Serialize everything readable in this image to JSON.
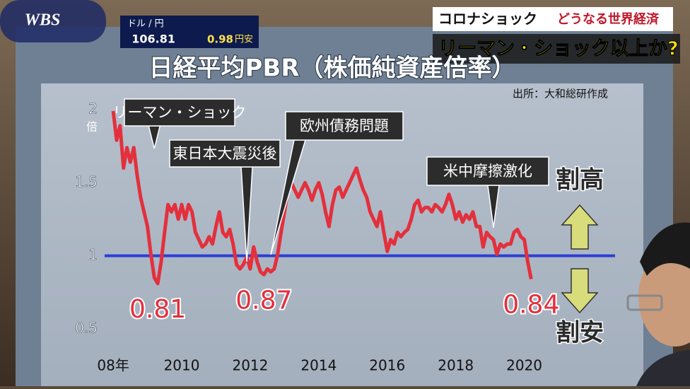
{
  "overlay": {
    "logo": "WBS",
    "fx_label": "ドル / 円",
    "fx_rate": 106.81,
    "fx_change": 0.98,
    "fx_change_unit": "円安",
    "headline_tag": "コロナショック",
    "headline_sub": "どうなる世界経済",
    "headline_main": "リーマン・ショック以上か?"
  },
  "chart_data": {
    "type": "line",
    "title": "日経平均PBR（株価純資産倍率）",
    "source": "出所：大和総研作成",
    "y_unit": "倍",
    "x": [
      2008,
      2008.1,
      2008.2,
      2008.3,
      2008.4,
      2008.5,
      2008.6,
      2008.7,
      2008.8,
      2008.9,
      2009,
      2009.1,
      2009.2,
      2009.3,
      2009.4,
      2009.5,
      2009.6,
      2009.7,
      2009.8,
      2009.9,
      2010,
      2010.1,
      2010.2,
      2010.3,
      2010.4,
      2010.5,
      2010.6,
      2010.7,
      2010.8,
      2010.9,
      2011,
      2011.1,
      2011.2,
      2011.3,
      2011.4,
      2011.5,
      2011.6,
      2011.7,
      2011.8,
      2011.9,
      2012,
      2012.1,
      2012.2,
      2012.3,
      2012.4,
      2012.5,
      2012.6,
      2012.7,
      2012.8,
      2012.9,
      2013,
      2013.1,
      2013.2,
      2013.3,
      2013.4,
      2013.5,
      2013.6,
      2013.7,
      2013.8,
      2013.9,
      2014,
      2014.1,
      2014.2,
      2014.3,
      2014.4,
      2014.5,
      2014.6,
      2014.7,
      2014.8,
      2014.9,
      2015,
      2015.1,
      2015.2,
      2015.3,
      2015.4,
      2015.5,
      2015.6,
      2015.7,
      2015.8,
      2015.9,
      2016,
      2016.1,
      2016.2,
      2016.3,
      2016.4,
      2016.5,
      2016.6,
      2016.7,
      2016.8,
      2016.9,
      2017,
      2017.1,
      2017.2,
      2017.3,
      2017.4,
      2017.5,
      2017.6,
      2017.7,
      2017.8,
      2017.9,
      2018,
      2018.1,
      2018.2,
      2018.3,
      2018.4,
      2018.5,
      2018.6,
      2018.7,
      2018.8,
      2018.9,
      2019,
      2019.1,
      2019.2,
      2019.3,
      2019.4,
      2019.5,
      2019.6,
      2019.7,
      2019.8,
      2019.9,
      2020,
      2020.1,
      2020.2
    ],
    "values": [
      1.99,
      1.79,
      1.89,
      1.6,
      1.74,
      1.64,
      1.74,
      1.55,
      1.4,
      1.3,
      1.2,
      1.01,
      0.85,
      0.81,
      0.96,
      1.16,
      1.35,
      1.3,
      1.35,
      1.25,
      1.35,
      1.25,
      1.35,
      1.3,
      1.16,
      1.11,
      1.06,
      1.08,
      1.13,
      1.08,
      1.2,
      1.3,
      1.16,
      1.13,
      1.18,
      1.08,
      0.94,
      0.91,
      0.94,
      0.99,
      0.91,
      1.06,
      0.96,
      0.89,
      0.87,
      0.91,
      0.89,
      0.91,
      1.01,
      1.16,
      1.3,
      1.45,
      1.5,
      1.45,
      1.4,
      1.45,
      1.5,
      1.45,
      1.38,
      1.45,
      1.5,
      1.42,
      1.3,
      1.2,
      1.35,
      1.45,
      1.47,
      1.4,
      1.45,
      1.5,
      1.55,
      1.6,
      1.52,
      1.45,
      1.4,
      1.3,
      1.25,
      1.2,
      1.3,
      1.16,
      1.03,
      1.11,
      1.08,
      1.16,
      1.13,
      1.16,
      1.18,
      1.25,
      1.35,
      1.38,
      1.3,
      1.33,
      1.33,
      1.3,
      1.35,
      1.33,
      1.3,
      1.35,
      1.42,
      1.35,
      1.25,
      1.3,
      1.23,
      1.28,
      1.25,
      1.3,
      1.2,
      1.2,
      1.06,
      1.16,
      1.13,
      1.11,
      1.01,
      1.08,
      1.06,
      1.08,
      1.08,
      1.16,
      1.18,
      1.13,
      1.11,
      0.96,
      0.84
    ],
    "color": "#e3303c",
    "xlim": [
      2007.75,
      2022.65
    ],
    "xticks": [
      {
        "value": 2008,
        "label": "08年"
      },
      2010,
      2012,
      2014,
      2016,
      2018,
      2020
    ],
    "ylim": [
      0.33,
      2.1
    ],
    "yticks": [
      0.5,
      1,
      1.5,
      2
    ],
    "ref_line": {
      "value": 1,
      "color": "#2b3fd6"
    },
    "callouts": [
      {
        "label": "リーマン・ショック",
        "x": 2009.2
      },
      {
        "label": "東日本大震災後",
        "x": 2011.9
      },
      {
        "label": "欧州債務問題",
        "x": 2012.6
      },
      {
        "label": "米中摩擦激化",
        "x": 2019.1
      }
    ],
    "value_labels": [
      {
        "text": "0.81",
        "value": 0.81,
        "x": 2009.3
      },
      {
        "text": "0.87",
        "value": 0.87,
        "x": 2012.4
      },
      {
        "text": "0.84",
        "value": 0.84,
        "x": 2020.2
      }
    ],
    "zone_labels": {
      "high": "割高",
      "low": "割安"
    }
  }
}
